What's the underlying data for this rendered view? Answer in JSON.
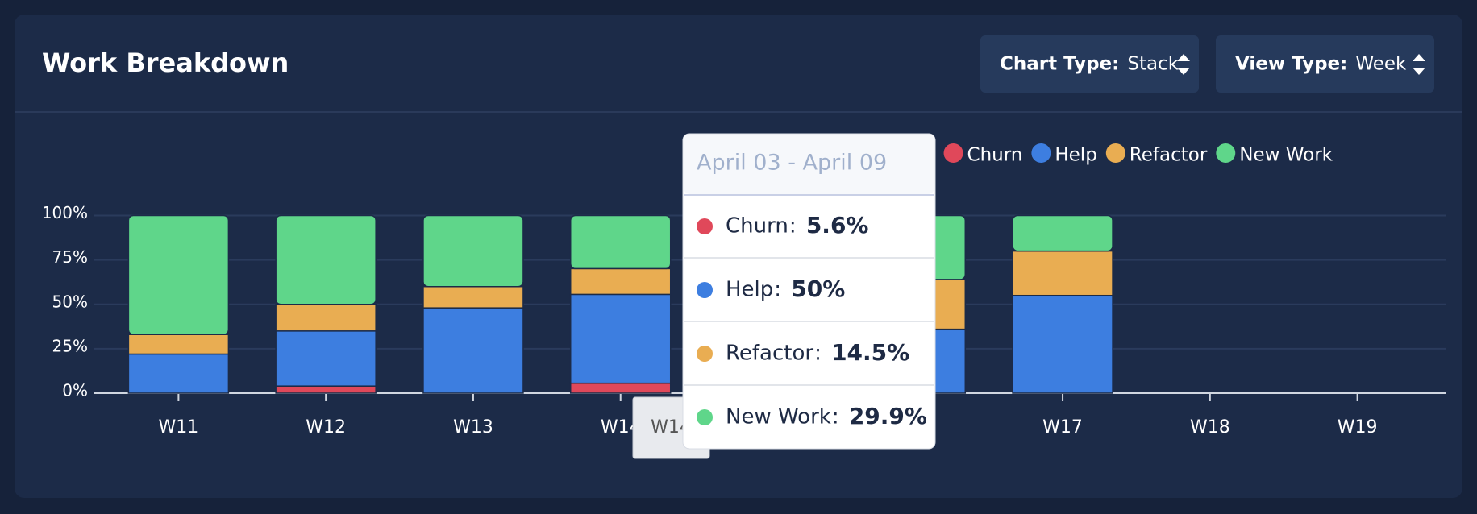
{
  "chart_data": {
    "type": "bar",
    "stacked": true,
    "title": "Work Breakdown",
    "controls": [
      {
        "label": "Chart Type:",
        "value": "Stack"
      },
      {
        "label": "View Type:",
        "value": "Week"
      }
    ],
    "categories": [
      "W11",
      "W12",
      "W13",
      "W14",
      null,
      null,
      "W17",
      "W18",
      "W19"
    ],
    "series": [
      {
        "name": "Churn",
        "color": "#e0485a",
        "values": [
          0,
          4,
          0,
          5.6,
          null,
          0,
          0,
          null,
          null
        ],
        "value_labels": [
          null,
          null,
          null,
          "5.6%",
          null,
          null,
          null,
          null,
          null
        ]
      },
      {
        "name": "Help",
        "color": "#3d7ee0",
        "values": [
          22,
          31,
          48,
          50,
          null,
          36,
          55,
          null,
          null
        ],
        "value_labels": [
          null,
          null,
          null,
          "50%",
          null,
          null,
          null,
          null,
          null
        ]
      },
      {
        "name": "Refactor",
        "color": "#e9ad52",
        "values": [
          11,
          15,
          12,
          14.5,
          null,
          28,
          25,
          null,
          null
        ],
        "value_labels": [
          null,
          null,
          null,
          "14.5%",
          null,
          null,
          null,
          null,
          null
        ]
      },
      {
        "name": "New Work",
        "color": "#5fd68a",
        "values": [
          67,
          50,
          40,
          29.9,
          null,
          36,
          20,
          null,
          null
        ],
        "value_labels": [
          null,
          null,
          null,
          "29.9%",
          null,
          null,
          null,
          null,
          null
        ]
      }
    ],
    "ylim": [
      0,
      100
    ],
    "yticks": [
      {
        "value": 0,
        "label": "0%"
      },
      {
        "value": 25,
        "label": "25%"
      },
      {
        "value": 50,
        "label": "50%"
      },
      {
        "value": 75,
        "label": "75%"
      },
      {
        "value": 100,
        "label": "100%"
      }
    ],
    "grid": true,
    "legend": "top-right",
    "tooltip": {
      "title": "April 03 - April 09"
    }
  }
}
